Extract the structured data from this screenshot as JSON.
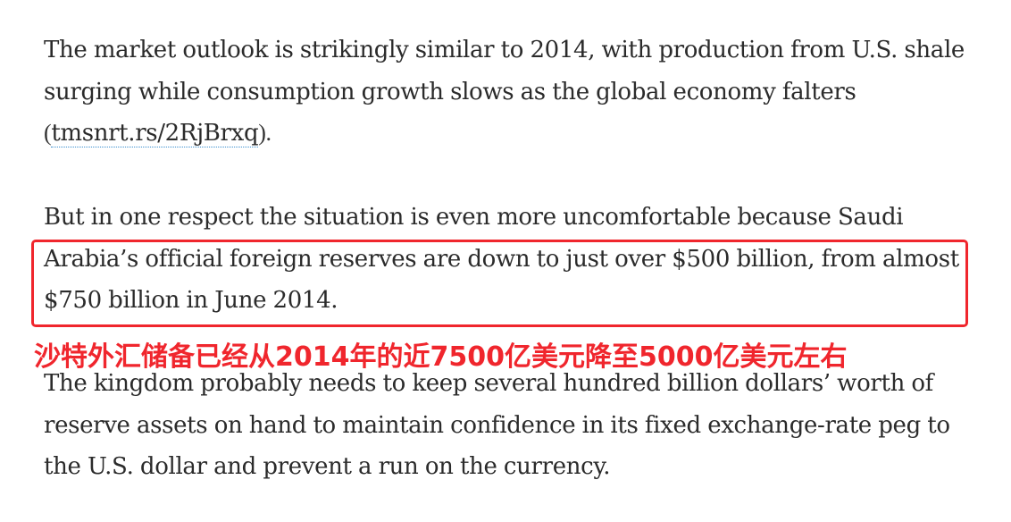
{
  "article": {
    "paragraph1": {
      "text": "The market outlook is strikingly similar to 2014, with production from U.S. shale surging while consumption growth slows as the global economy falters ",
      "paren_open": "(",
      "link_text": "tmsnrt.rs/2RjBrxq",
      "paren_close": ")."
    },
    "paragraph2": {
      "line1": "But in one respect the situation is even more uncomfortable because Saudi",
      "line2": "Arabia’s official foreign reserves are down to just over $500 billion, from almost",
      "line3": "$750 billion in June 2014."
    },
    "paragraph3": {
      "text": "The kingdom probably needs to keep several hundred billion dollars’ worth of reserve assets on hand to maintain confidence in its fixed exchange-rate peg to the U.S. dollar and prevent a run on the currency."
    }
  },
  "annotation": {
    "text": "沙特外汇储备已经从2014年的近7500亿美元降至5000亿美元左右",
    "color": "#f0262d"
  }
}
